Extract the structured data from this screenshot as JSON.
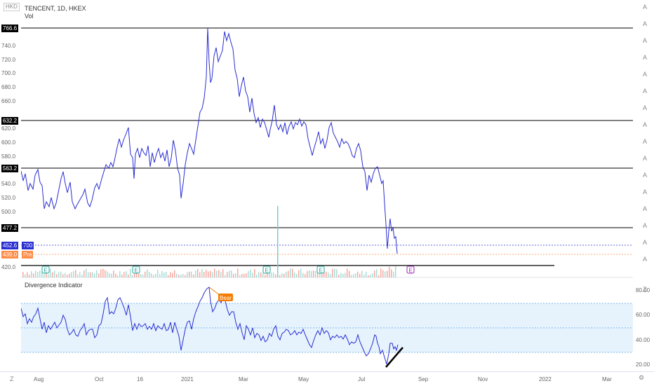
{
  "header": {
    "currency": "HKD",
    "title": "TENCENT, 1D, HKEX",
    "volume_label": "Vol"
  },
  "price_scale": {
    "ticks": [
      "740.0",
      "720.0",
      "700.0",
      "680.0",
      "660.0",
      "640.0",
      "620.0",
      "600.0",
      "580.0",
      "560.0",
      "540.0",
      "520.0",
      "500.0",
      "460.0",
      "420.0"
    ],
    "levels": [
      "766.6",
      "632.2",
      "563.2",
      "477.2"
    ],
    "last_price": "452.6",
    "last_volume": "700",
    "pre_price": "439.0",
    "pre_label": "Pre"
  },
  "indicator": {
    "title": "Divergence Indicator",
    "scale": [
      "80.00",
      "60.00",
      "40.00",
      "20.00"
    ],
    "bear_label": "Bear"
  },
  "time_axis": {
    "labels": [
      "Aug",
      "Oct",
      "16",
      "2021",
      "Mar",
      "May",
      "Jul",
      "Sep",
      "Nov",
      "2022",
      "Mar"
    ],
    "left_control": "Z",
    "right_control": "⚙"
  },
  "right_axis": {
    "letters": [
      "A",
      "A",
      "A",
      "A",
      "A",
      "A",
      "A",
      "A",
      "A",
      "A",
      "A",
      "A",
      "A",
      "A",
      "A",
      "A"
    ],
    "controls": [
      "Z"
    ]
  },
  "events": {
    "earnings_labels": [
      "E",
      "E",
      "E",
      "E"
    ],
    "upcoming_label": "E"
  },
  "colors": {
    "price_line": "#2a2ed1",
    "level_line": "#000000",
    "band_fill": "#d6ebfb",
    "bear": "#f57c00",
    "last_price_tag": "#2a2ed1",
    "pre_tag": "#ff8d4a"
  }
}
